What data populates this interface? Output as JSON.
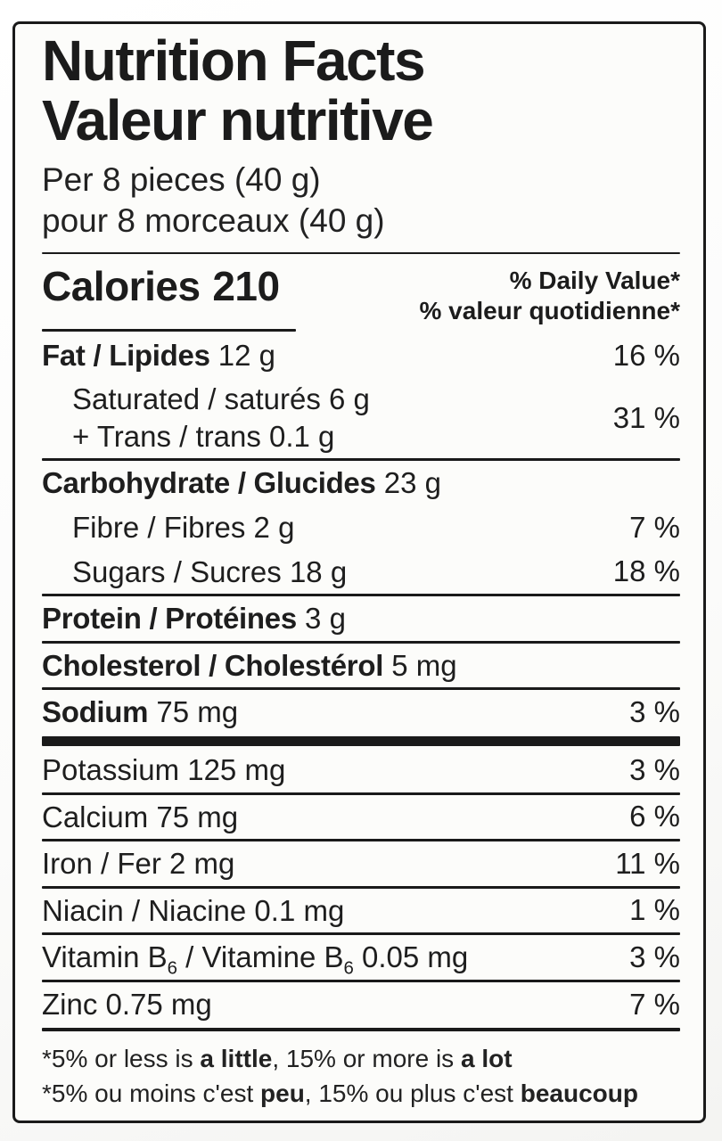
{
  "colors": {
    "label_background": "#fcfcfa",
    "text": "#1c1c1c",
    "rule": "#1a1a1a"
  },
  "header": {
    "title_en": "Nutrition Facts",
    "title_fr": "Valeur nutritive",
    "serving_en": "Per 8 pieces (40 g)",
    "serving_fr": "pour 8 morceaux (40 g)"
  },
  "calories": {
    "label": "Calories",
    "value": "210"
  },
  "daily_value": {
    "header_en": "% Daily Value*",
    "header_fr": "% valeur quotidienne*"
  },
  "nutrients": [
    {
      "separator": "none",
      "percent": "16 %",
      "lines": [
        {
          "indent": false,
          "parts": [
            {
              "text": "Fat / Lipides",
              "bold": true
            },
            {
              "text": " 12 g"
            }
          ]
        }
      ]
    },
    {
      "separator": "none",
      "percent": "31 %",
      "lines": [
        {
          "indent": true,
          "parts": [
            {
              "text": "Saturated / saturés 6 g"
            }
          ]
        },
        {
          "indent": true,
          "parts": [
            {
              "text": "+ Trans / trans 0.1 g"
            }
          ]
        }
      ]
    },
    {
      "separator": "thin",
      "percent": "",
      "lines": [
        {
          "indent": false,
          "parts": [
            {
              "text": "Carbohydrate / Glucides",
              "bold": true
            },
            {
              "text": " 23 g"
            }
          ]
        }
      ]
    },
    {
      "separator": "none",
      "percent": "7 %",
      "lines": [
        {
          "indent": true,
          "parts": [
            {
              "text": "Fibre / Fibres 2 g"
            }
          ]
        }
      ]
    },
    {
      "separator": "none",
      "percent": "18 %",
      "lines": [
        {
          "indent": true,
          "parts": [
            {
              "text": "Sugars / Sucres 18 g"
            }
          ]
        }
      ]
    },
    {
      "separator": "thin",
      "percent": "",
      "lines": [
        {
          "indent": false,
          "parts": [
            {
              "text": "Protein / Protéines",
              "bold": true
            },
            {
              "text": " 3 g"
            }
          ]
        }
      ]
    },
    {
      "separator": "thin",
      "percent": "",
      "lines": [
        {
          "indent": false,
          "parts": [
            {
              "text": "Cholesterol / Cholestérol",
              "bold": true
            },
            {
              "text": " 5 mg"
            }
          ]
        }
      ]
    },
    {
      "separator": "thin",
      "percent": "3 %",
      "lines": [
        {
          "indent": false,
          "parts": [
            {
              "text": "Sodium",
              "bold": true
            },
            {
              "text": " 75 mg"
            }
          ]
        }
      ]
    },
    {
      "separator": "thick",
      "percent": "3 %",
      "lines": [
        {
          "indent": false,
          "parts": [
            {
              "text": "Potassium 125 mg"
            }
          ]
        }
      ]
    },
    {
      "separator": "thin",
      "percent": "6 %",
      "lines": [
        {
          "indent": false,
          "parts": [
            {
              "text": "Calcium 75 mg"
            }
          ]
        }
      ]
    },
    {
      "separator": "thin",
      "percent": "11 %",
      "lines": [
        {
          "indent": false,
          "parts": [
            {
              "text": "Iron / Fer 2 mg"
            }
          ]
        }
      ]
    },
    {
      "separator": "thin",
      "percent": "1 %",
      "lines": [
        {
          "indent": false,
          "parts": [
            {
              "text": "Niacin / Niacine 0.1 mg"
            }
          ]
        }
      ]
    },
    {
      "separator": "thin",
      "percent": "3 %",
      "lines": [
        {
          "indent": false,
          "parts": [
            {
              "text": "Vitamin B"
            },
            {
              "text": "6",
              "sub": true
            },
            {
              "text": " / Vitamine B"
            },
            {
              "text": "6",
              "sub": true
            },
            {
              "text": " 0.05 mg"
            }
          ]
        }
      ]
    },
    {
      "separator": "thin",
      "percent": "7 %",
      "lines": [
        {
          "indent": false,
          "parts": [
            {
              "text": "Zinc 0.75 mg"
            }
          ]
        }
      ]
    }
  ],
  "footnotes": [
    {
      "parts": [
        {
          "text": "*5% or less is "
        },
        {
          "text": "a little",
          "bold": true
        },
        {
          "text": ", 15% or more is "
        },
        {
          "text": "a lot",
          "bold": true
        }
      ]
    },
    {
      "parts": [
        {
          "text": "*5% ou moins c'est "
        },
        {
          "text": "peu",
          "bold": true
        },
        {
          "text": ", 15% ou plus c'est "
        },
        {
          "text": "beaucoup",
          "bold": true
        }
      ]
    }
  ]
}
